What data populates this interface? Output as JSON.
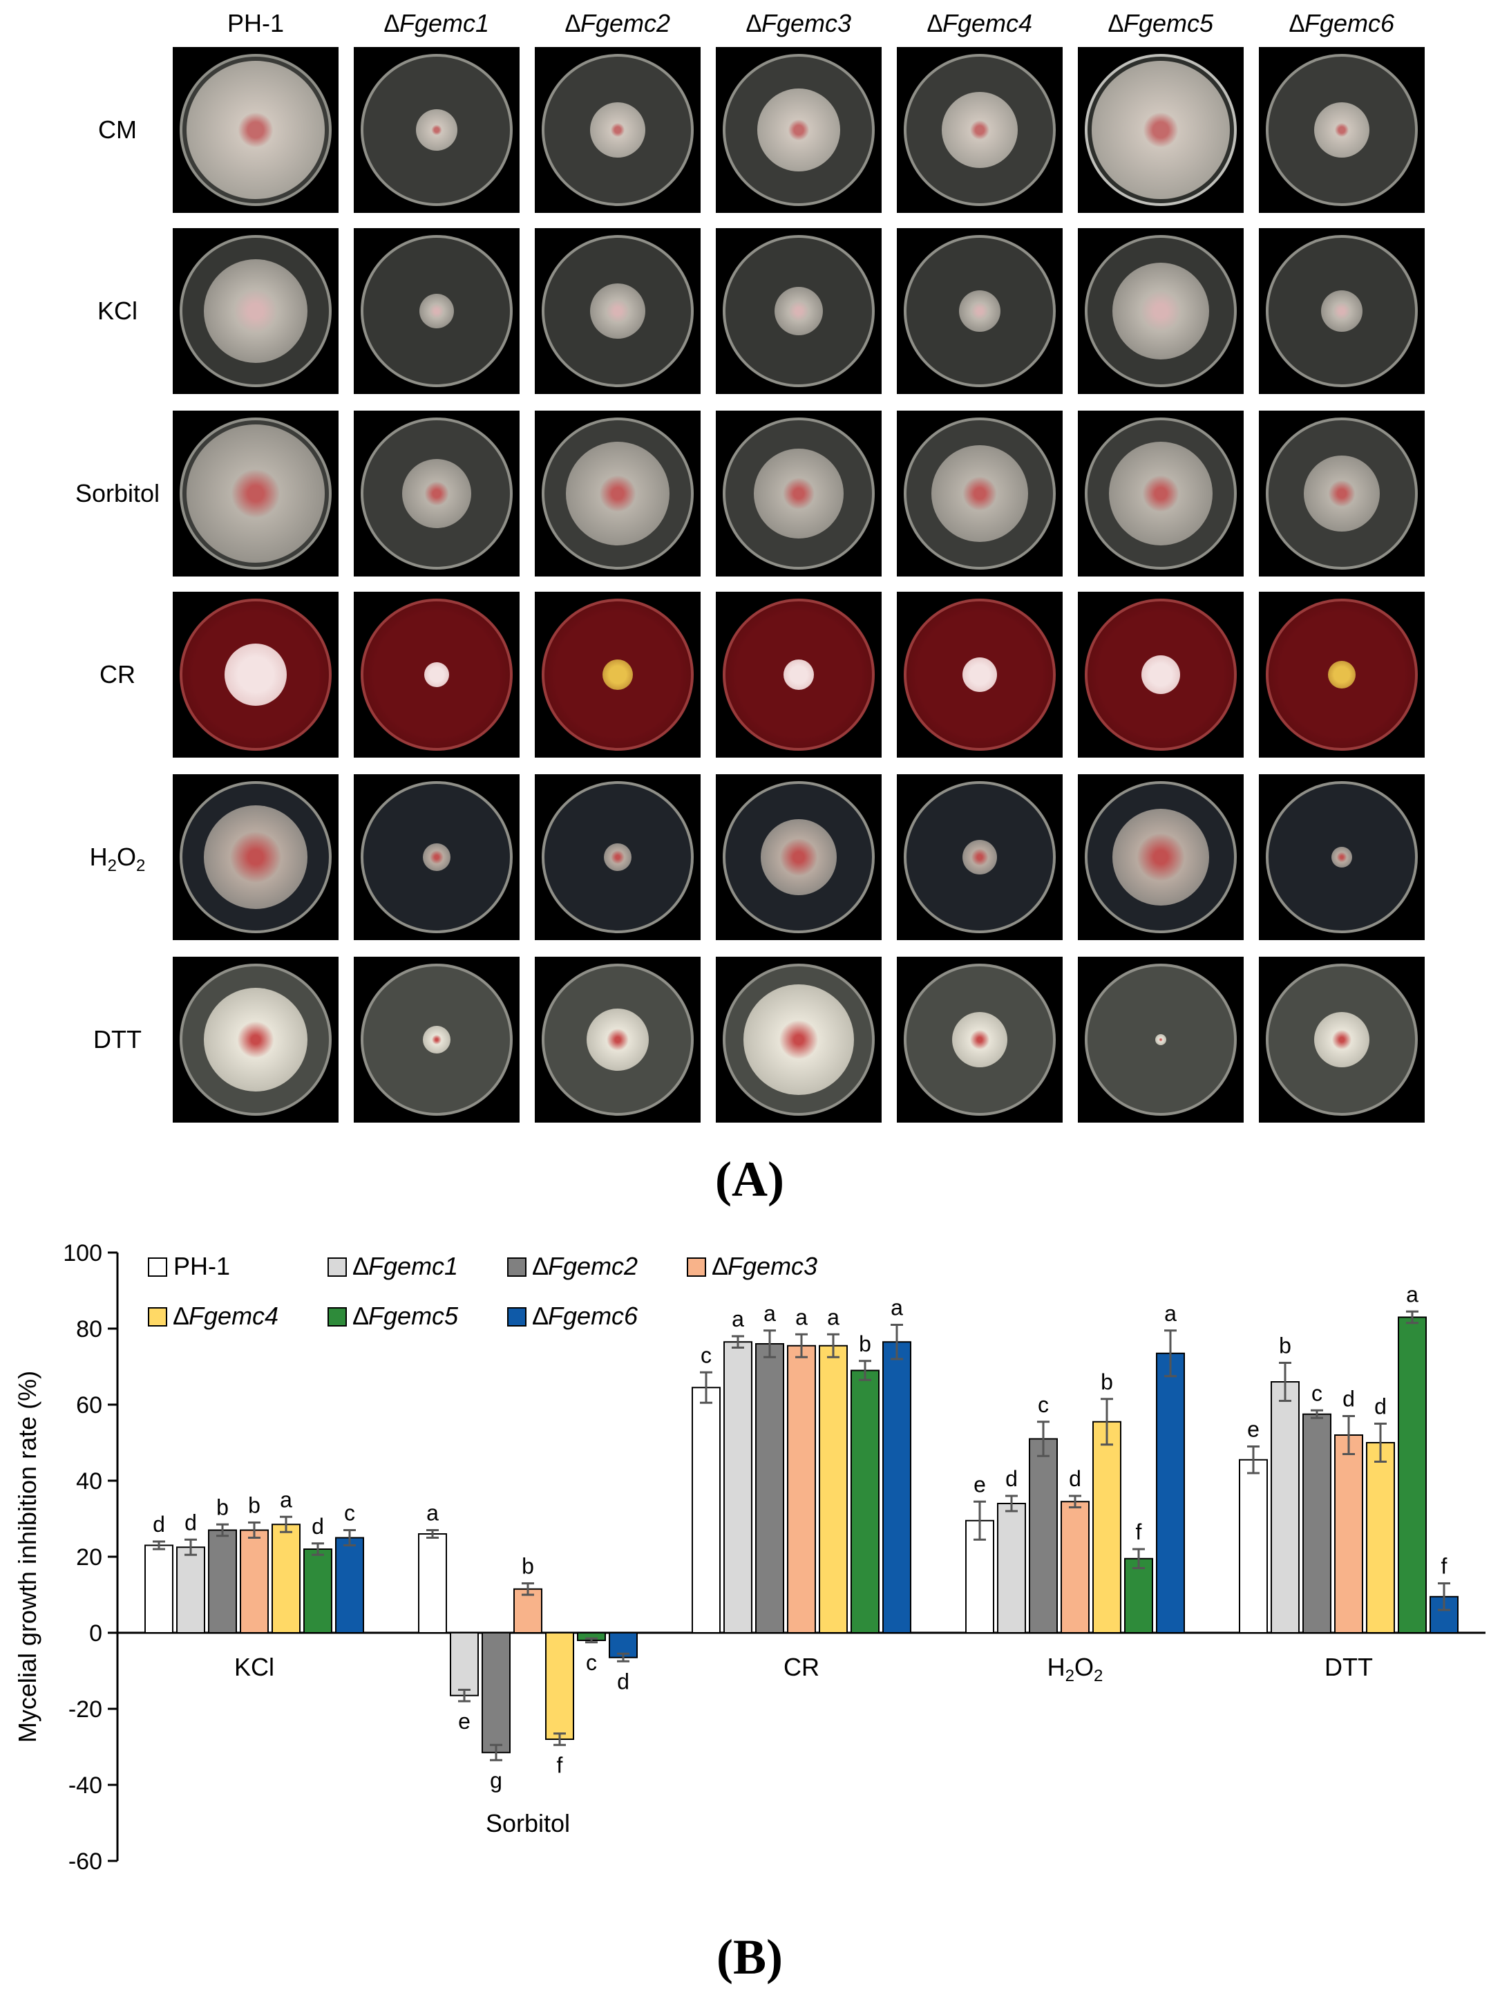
{
  "panel_a": {
    "label": "(A)",
    "strains": [
      "PH-1",
      "∆Fgemc1",
      "∆Fgemc2",
      "∆Fgemc3",
      "∆Fgemc4",
      "∆Fgemc5",
      "∆Fgemc6"
    ],
    "conditions": [
      "CM",
      "KCl",
      "Sorbitol",
      "CR",
      "H2O2",
      "DTT"
    ]
  },
  "panel_b": {
    "label": "(B)"
  },
  "chart_data": {
    "type": "bar",
    "ylabel": "Mycelial growth inhibition rate (%)",
    "xlabel": "",
    "ylim": [
      -60,
      100
    ],
    "yticks": [
      -60,
      -40,
      -20,
      0,
      20,
      40,
      60,
      80,
      100
    ],
    "categories": [
      "KCl",
      "Sorbitol",
      "CR",
      "H2O2",
      "DTT"
    ],
    "legend_position": "top-left",
    "series": [
      {
        "name": "PH-1",
        "color": "#ffffff",
        "values": [
          23,
          26,
          64.5,
          29.5,
          45.5
        ],
        "errors": [
          1,
          1,
          4,
          5,
          3.5
        ],
        "letters": [
          "d",
          "a",
          "c",
          "e",
          "e"
        ]
      },
      {
        "name": "∆Fgemc1",
        "color": "#d9d9d9",
        "values": [
          22.5,
          -16.5,
          76.5,
          34,
          66
        ],
        "errors": [
          2,
          1.5,
          1.5,
          2,
          5
        ],
        "letters": [
          "d",
          "e",
          "a",
          "d",
          "b"
        ]
      },
      {
        "name": "∆Fgemc2",
        "color": "#808080",
        "values": [
          27,
          -31.5,
          76,
          51,
          57.5
        ],
        "errors": [
          1.5,
          2,
          3.5,
          4.5,
          1
        ],
        "letters": [
          "b",
          "g",
          "a",
          "c",
          "c"
        ]
      },
      {
        "name": "∆Fgemc3",
        "color": "#f8b38a",
        "values": [
          27,
          11.5,
          75.5,
          34.5,
          52
        ],
        "errors": [
          2,
          1.5,
          3,
          1.5,
          5
        ],
        "letters": [
          "b",
          "b",
          "a",
          "d",
          "d"
        ]
      },
      {
        "name": "∆Fgemc4",
        "color": "#ffd966",
        "values": [
          28.5,
          -28,
          75.5,
          55.5,
          50
        ],
        "errors": [
          2,
          1.5,
          3,
          6,
          5
        ],
        "letters": [
          "a",
          "f",
          "a",
          "b",
          "d"
        ]
      },
      {
        "name": "∆Fgemc5",
        "color": "#2e8b3a",
        "values": [
          22,
          -2,
          69,
          19.5,
          83
        ],
        "errors": [
          1.5,
          0.5,
          2.5,
          2.5,
          1.5
        ],
        "letters": [
          "d",
          "c",
          "b",
          "f",
          "a"
        ]
      },
      {
        "name": "∆Fgemc6",
        "color": "#0f5aa8",
        "values": [
          25,
          -6.5,
          76.5,
          73.5,
          9.5
        ],
        "errors": [
          2,
          1,
          4.5,
          6,
          3.5
        ],
        "letters": [
          "c",
          "d",
          "a",
          "a",
          "f"
        ]
      }
    ]
  }
}
